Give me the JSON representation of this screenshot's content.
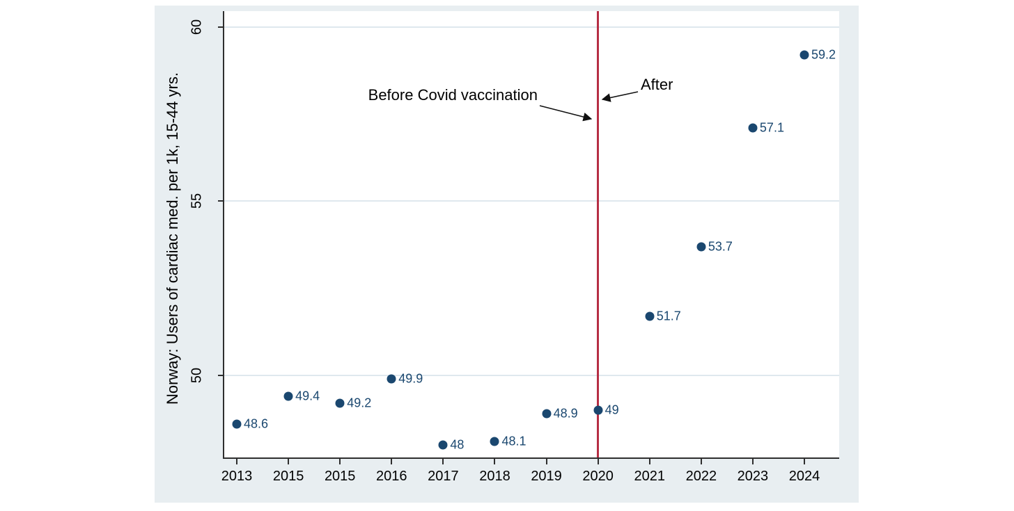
{
  "figure": {
    "background_color": "#e8eef1",
    "plot_background_color": "#ffffff",
    "grid_color": "#dfe8ee",
    "axis_color": "#2e2e2e",
    "marker_color": "#1a476f",
    "point_label_color": "#1a476f",
    "text_color": "#000000"
  },
  "chart_data": {
    "type": "scatter",
    "title": "",
    "xlabel": "",
    "ylabel": "Norway: Users of cardiac med. per 1k, 15-44 yrs.",
    "x_tick_labels": [
      "2013",
      "2015",
      "2015",
      "2016",
      "2017",
      "2018",
      "2019",
      "2020",
      "2021",
      "2022",
      "2023",
      "2024"
    ],
    "y_ticks": [
      50,
      55,
      60
    ],
    "y_tick_labels": [
      "50",
      "55",
      "60"
    ],
    "ylim": [
      47.65,
      60.45
    ],
    "x_padding": [
      0.0204,
      0.0566
    ],
    "grid": "horizontal-only",
    "legend": "none",
    "points": [
      {
        "xi": 0,
        "year": "2013",
        "value": 48.6,
        "label": "48.6"
      },
      {
        "xi": 1,
        "year": "2015",
        "value": 49.4,
        "label": "49.4"
      },
      {
        "xi": 2,
        "year": "2015",
        "value": 49.2,
        "label": "49.2"
      },
      {
        "xi": 3,
        "year": "2016",
        "value": 49.9,
        "label": "49.9"
      },
      {
        "xi": 4,
        "year": "2017",
        "value": 48,
        "label": "48"
      },
      {
        "xi": 5,
        "year": "2018",
        "value": 48.1,
        "label": "48.1"
      },
      {
        "xi": 6,
        "year": "2019",
        "value": 48.9,
        "label": "48.9"
      },
      {
        "xi": 7,
        "year": "2020",
        "value": 49,
        "label": "49"
      },
      {
        "xi": 8,
        "year": "2021",
        "value": 51.7,
        "label": "51.7"
      },
      {
        "xi": 9,
        "year": "2022",
        "value": 53.7,
        "label": "53.7"
      },
      {
        "xi": 10,
        "year": "2023",
        "value": 57.1,
        "label": "57.1"
      },
      {
        "xi": 11,
        "year": "2024",
        "value": 59.2,
        "label": "59.2"
      }
    ],
    "vline": {
      "x_label": "2020",
      "color": "#b62e44"
    },
    "annotations": [
      {
        "id": "before",
        "text": "Before Covid vaccination"
      },
      {
        "id": "after",
        "text": "After"
      }
    ]
  }
}
